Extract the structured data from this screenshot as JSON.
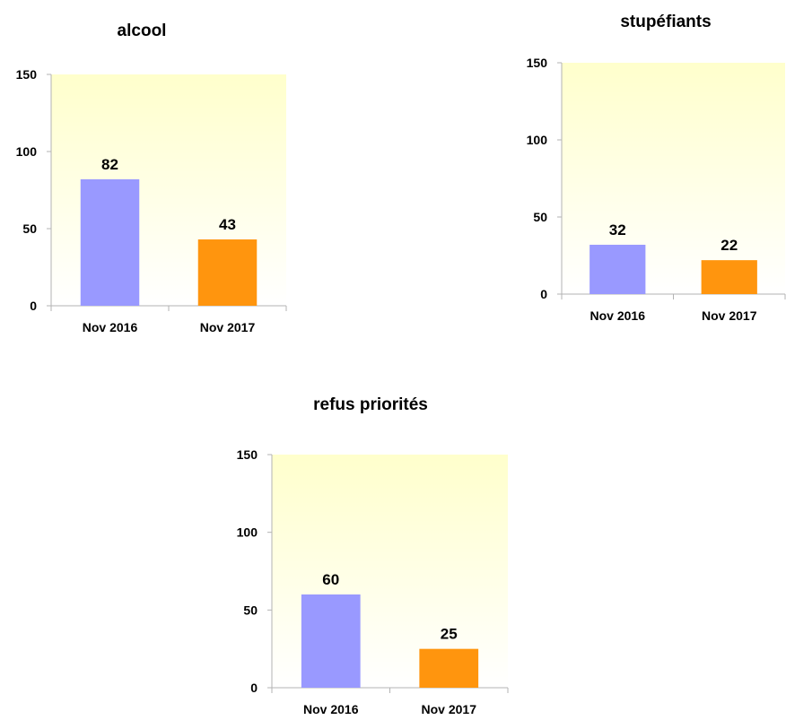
{
  "colors": {
    "series_2016": "#9999ff",
    "series_2017": "#ff950e",
    "plot_bg_top": "#ffffcc",
    "plot_bg_bottom": "#ffffff",
    "axis": "#b3b3b3"
  },
  "chart_data": [
    {
      "type": "bar",
      "title": "alcool",
      "categories": [
        "Nov 2016",
        "Nov 2017"
      ],
      "values": [
        82,
        43
      ],
      "data_labels": [
        "82",
        "43"
      ],
      "ylim": [
        0,
        150
      ],
      "yticks": [
        0,
        50,
        100,
        150
      ],
      "ytick_labels": [
        "0",
        "50",
        "100",
        "150"
      ],
      "xlabel": "",
      "ylabel": "",
      "grid": false,
      "legend": "none"
    },
    {
      "type": "bar",
      "title": "stupéfiants",
      "categories": [
        "Nov 2016",
        "Nov 2017"
      ],
      "values": [
        32,
        22
      ],
      "data_labels": [
        "32",
        "22"
      ],
      "ylim": [
        0,
        150
      ],
      "yticks": [
        0,
        50,
        100,
        150
      ],
      "ytick_labels": [
        "0",
        "50",
        "100",
        "150"
      ],
      "xlabel": "",
      "ylabel": "",
      "grid": false,
      "legend": "none"
    },
    {
      "type": "bar",
      "title": "refus priorités",
      "categories": [
        "Nov 2016",
        "Nov 2017"
      ],
      "values": [
        60,
        25
      ],
      "data_labels": [
        "60",
        "25"
      ],
      "ylim": [
        0,
        150
      ],
      "yticks": [
        0,
        50,
        100,
        150
      ],
      "ytick_labels": [
        "0",
        "50",
        "100",
        "150"
      ],
      "xlabel": "",
      "ylabel": "",
      "grid": false,
      "legend": "none"
    }
  ]
}
